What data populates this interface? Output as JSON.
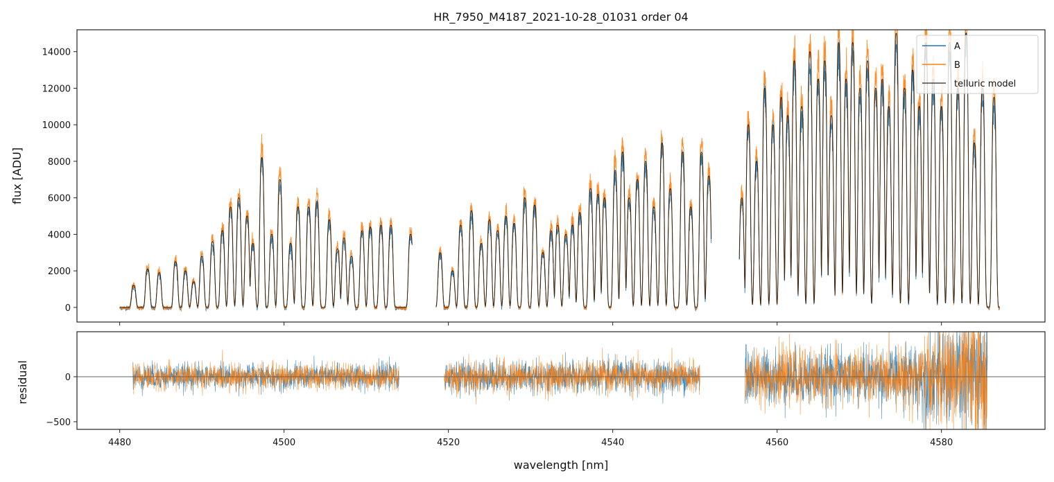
{
  "chart_data": {
    "type": "line",
    "title": "HR_7950_M4187_2021-10-28_01031  order 04",
    "xlabel": "wavelength [nm]",
    "xlim": [
      4474.8,
      4592.6
    ],
    "xticks": [
      4480,
      4500,
      4520,
      4540,
      4560,
      4580
    ],
    "panels": {
      "flux": {
        "ylabel": "flux [ADU]",
        "ylim": [
          -800,
          15200
        ],
        "yticks": [
          0,
          2000,
          4000,
          6000,
          8000,
          10000,
          12000,
          14000
        ],
        "legend": {
          "position": "top-right",
          "entries": [
            "A",
            "B",
            "telluric model"
          ]
        },
        "segments": [
          {
            "range": [
              4480.0,
              4515.6
            ],
            "peaks": [
              [
                4481.7,
                1200
              ],
              [
                4483.4,
                2100
              ],
              [
                4484.8,
                1900
              ],
              [
                4486.8,
                2500
              ],
              [
                4488,
                2000
              ],
              [
                4489,
                1400
              ],
              [
                4490,
                2800
              ],
              [
                4491.3,
                3600
              ],
              [
                4492.5,
                4200
              ],
              [
                4493.5,
                5500
              ],
              [
                4494.5,
                6000
              ],
              [
                4495.5,
                5000
              ],
              [
                4496.2,
                3500
              ],
              [
                4497.3,
                8200
              ],
              [
                4498.5,
                4000
              ],
              [
                4499.5,
                7000
              ],
              [
                4500.8,
                3500
              ],
              [
                4501.7,
                5500
              ],
              [
                4503,
                5500
              ],
              [
                4504,
                5800
              ],
              [
                4505.5,
                4800
              ],
              [
                4506.5,
                3200
              ],
              [
                4507.3,
                3800
              ],
              [
                4508.2,
                2800
              ],
              [
                4509.5,
                4200
              ],
              [
                4510.5,
                4400
              ],
              [
                4511.8,
                4500
              ],
              [
                4513,
                4500
              ],
              [
                4515.4,
                4000
              ]
            ]
          },
          {
            "range": [
              4518.5,
              4552.0
            ],
            "peaks": [
              [
                4519,
                3000
              ],
              [
                4520.5,
                2000
              ],
              [
                4521.5,
                4500
              ],
              [
                4522.8,
                5300
              ],
              [
                4524,
                3500
              ],
              [
                4525,
                4800
              ],
              [
                4526,
                4200
              ],
              [
                4527,
                5000
              ],
              [
                4528,
                4600
              ],
              [
                4529.3,
                6000
              ],
              [
                4530.5,
                5600
              ],
              [
                4531.5,
                3000
              ],
              [
                4532.5,
                4200
              ],
              [
                4533.3,
                4500
              ],
              [
                4534.3,
                4000
              ],
              [
                4535.1,
                4500
              ],
              [
                4536,
                5200
              ],
              [
                4537.3,
                6500
              ],
              [
                4538.2,
                6200
              ],
              [
                4539,
                6000
              ],
              [
                4540.3,
                7500
              ],
              [
                4541.2,
                8500
              ],
              [
                4542,
                6000
              ],
              [
                4543,
                7000
              ],
              [
                4544,
                8000
              ],
              [
                4545,
                5500
              ],
              [
                4546,
                9000
              ],
              [
                4547,
                6500
              ],
              [
                4548.5,
                8500
              ],
              [
                4549.5,
                5500
              ],
              [
                4550.8,
                8500
              ],
              [
                4551.7,
                7200
              ]
            ]
          },
          {
            "range": [
              4555.4,
              4587.1
            ],
            "peaks": [
              [
                4555.7,
                6000
              ],
              [
                4556.5,
                10000
              ],
              [
                4557.5,
                8000
              ],
              [
                4558.5,
                12000
              ],
              [
                4559.5,
                10000
              ],
              [
                4560.5,
                11500
              ],
              [
                4561.3,
                10500
              ],
              [
                4562.1,
                13500
              ],
              [
                4563,
                11000
              ],
              [
                4564,
                14000
              ],
              [
                4565,
                12500
              ],
              [
                4565.8,
                13500
              ],
              [
                4566.6,
                10500
              ],
              [
                4567.5,
                14500
              ],
              [
                4568.4,
                12500
              ],
              [
                4569.2,
                14500
              ],
              [
                4570.1,
                12000
              ],
              [
                4571,
                13500
              ],
              [
                4572,
                12000
              ],
              [
                4572.8,
                12500
              ],
              [
                4573.6,
                11000
              ],
              [
                4574.5,
                15000
              ],
              [
                4575.5,
                12000
              ],
              [
                4576.5,
                13000
              ],
              [
                4577.3,
                11000
              ],
              [
                4578.1,
                14500
              ],
              [
                4579,
                12500
              ],
              [
                4580,
                11000
              ],
              [
                4581,
                14500
              ],
              [
                4582,
                12000
              ],
              [
                4583,
                15000
              ],
              [
                4584,
                9000
              ],
              [
                4585,
                12000
              ],
              [
                4586.4,
                11500
              ]
            ]
          }
        ]
      },
      "residual": {
        "ylabel": "residual",
        "ylim": [
          -585,
          500
        ],
        "yticks": [
          0,
          -500
        ],
        "yticklabels": [
          "0",
          "−500"
        ],
        "zero_line": true,
        "segments": [
          {
            "range": [
              4481.6,
              4514.0
            ],
            "noise_std": 70
          },
          {
            "range": [
              4519.5,
              4550.6
            ],
            "noise_std": 90
          },
          {
            "range": [
              4556.1,
              4585.6
            ],
            "noise_std": 150
          }
        ]
      }
    },
    "series": [
      {
        "name": "A",
        "color": "#1f77b4"
      },
      {
        "name": "B",
        "color": "#ff7f0e"
      },
      {
        "name": "telluric model",
        "color": "#000000"
      }
    ]
  }
}
